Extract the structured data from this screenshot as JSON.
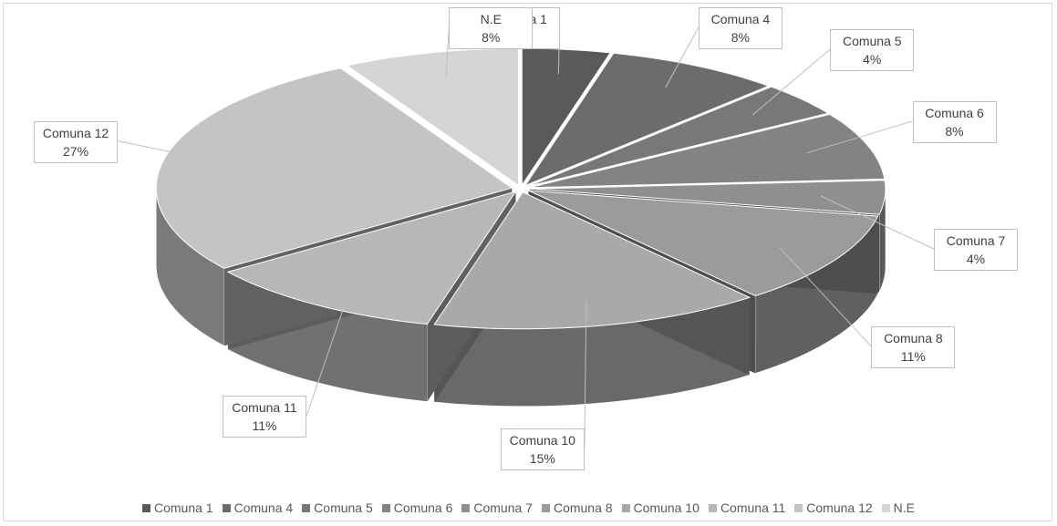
{
  "chart_data": {
    "type": "pie",
    "style": "3d exploded pie",
    "title": "",
    "legend_position": "bottom",
    "slices": [
      {
        "label": "Comuna 1",
        "value_label": "4%",
        "value": 4,
        "color": "#5a5a5a"
      },
      {
        "label": "Comuna 4",
        "value_label": "8%",
        "value": 8,
        "color": "#6c6c6c"
      },
      {
        "label": "Comuna 5",
        "value_label": "4%",
        "value": 4,
        "color": "#787878"
      },
      {
        "label": "Comuna 6",
        "value_label": "8%",
        "value": 8,
        "color": "#838383"
      },
      {
        "label": "Comuna 7",
        "value_label": "4%",
        "value": 4,
        "color": "#8f8f8f"
      },
      {
        "label": "Comuna 8",
        "value_label": "11%",
        "value": 11,
        "color": "#9b9b9b"
      },
      {
        "label": "Comuna 10",
        "value_label": "15%",
        "value": 15,
        "color": "#a9a9a9"
      },
      {
        "label": "Comuna 11",
        "value_label": "11%",
        "value": 11,
        "color": "#b7b7b7"
      },
      {
        "label": "Comuna 12",
        "value_label": "27%",
        "value": 27,
        "color": "#c4c4c4"
      },
      {
        "label": "N.E",
        "value_label": "8%",
        "value": 8,
        "color": "#d4d4d4"
      }
    ]
  }
}
